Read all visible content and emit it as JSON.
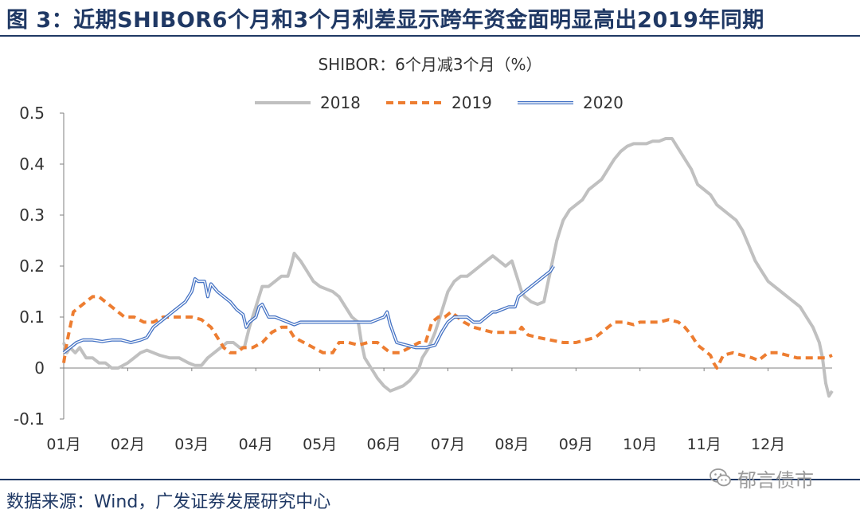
{
  "figure": {
    "title": "图  3：近期SHIBOR6个月和3个月利差显示跨年资金面明显高出2019年同期",
    "source": "数据来源：Wind，广发证券发展研究中心",
    "watermark": "郁言债市",
    "watermark_icon": "wechat-icon"
  },
  "colors": {
    "header_blue": "#1f3864",
    "series_2018": "#c0c0c0",
    "series_2019": "#ed7d31",
    "series_2020": "#4472c4"
  },
  "chart_data": {
    "type": "line",
    "title": "SHIBOR：6个月减3个月（%）",
    "x_unit": "month",
    "xlim": [
      1,
      13
    ],
    "ylim": [
      -0.1,
      0.5
    ],
    "yticks": [
      "-0.1",
      "0",
      "0.1",
      "0.2",
      "0.3",
      "0.4",
      "0.5"
    ],
    "xticks": [
      "01月",
      "02月",
      "03月",
      "04月",
      "05月",
      "06月",
      "07月",
      "08月",
      "09月",
      "10月",
      "11月",
      "12月"
    ],
    "grid": false,
    "legend_position": "top-center",
    "series": [
      {
        "name": "2018",
        "style": "solid",
        "points": [
          [
            1.0,
            0.05
          ],
          [
            1.05,
            0.03
          ],
          [
            1.1,
            0.04
          ],
          [
            1.18,
            0.03
          ],
          [
            1.25,
            0.04
          ],
          [
            1.3,
            0.03
          ],
          [
            1.35,
            0.02
          ],
          [
            1.45,
            0.02
          ],
          [
            1.55,
            0.01
          ],
          [
            1.65,
            0.01
          ],
          [
            1.75,
            0.0
          ],
          [
            1.85,
            0.0
          ],
          [
            2.0,
            0.01
          ],
          [
            2.1,
            0.02
          ],
          [
            2.2,
            0.03
          ],
          [
            2.3,
            0.035
          ],
          [
            2.4,
            0.03
          ],
          [
            2.5,
            0.025
          ],
          [
            2.65,
            0.02
          ],
          [
            2.8,
            0.02
          ],
          [
            2.95,
            0.01
          ],
          [
            3.05,
            0.005
          ],
          [
            3.15,
            0.005
          ],
          [
            3.25,
            0.02
          ],
          [
            3.35,
            0.03
          ],
          [
            3.45,
            0.04
          ],
          [
            3.55,
            0.05
          ],
          [
            3.65,
            0.05
          ],
          [
            3.75,
            0.04
          ],
          [
            3.82,
            0.04
          ],
          [
            3.9,
            0.08
          ],
          [
            3.95,
            0.1
          ],
          [
            4.0,
            0.12
          ],
          [
            4.05,
            0.14
          ],
          [
            4.1,
            0.16
          ],
          [
            4.2,
            0.16
          ],
          [
            4.3,
            0.17
          ],
          [
            4.4,
            0.18
          ],
          [
            4.5,
            0.18
          ],
          [
            4.55,
            0.2
          ],
          [
            4.6,
            0.225
          ],
          [
            4.7,
            0.21
          ],
          [
            4.8,
            0.19
          ],
          [
            4.9,
            0.17
          ],
          [
            5.0,
            0.16
          ],
          [
            5.1,
            0.155
          ],
          [
            5.2,
            0.15
          ],
          [
            5.3,
            0.14
          ],
          [
            5.4,
            0.12
          ],
          [
            5.5,
            0.1
          ],
          [
            5.6,
            0.09
          ],
          [
            5.65,
            0.05
          ],
          [
            5.7,
            0.02
          ],
          [
            5.8,
            0.0
          ],
          [
            5.9,
            -0.02
          ],
          [
            6.0,
            -0.035
          ],
          [
            6.1,
            -0.045
          ],
          [
            6.2,
            -0.04
          ],
          [
            6.3,
            -0.035
          ],
          [
            6.4,
            -0.025
          ],
          [
            6.5,
            -0.01
          ],
          [
            6.55,
            0.0
          ],
          [
            6.6,
            0.02
          ],
          [
            6.7,
            0.04
          ],
          [
            6.8,
            0.07
          ],
          [
            6.9,
            0.11
          ],
          [
            7.0,
            0.15
          ],
          [
            7.1,
            0.17
          ],
          [
            7.2,
            0.18
          ],
          [
            7.3,
            0.18
          ],
          [
            7.4,
            0.19
          ],
          [
            7.5,
            0.2
          ],
          [
            7.6,
            0.21
          ],
          [
            7.7,
            0.22
          ],
          [
            7.8,
            0.21
          ],
          [
            7.9,
            0.2
          ],
          [
            8.0,
            0.21
          ],
          [
            8.05,
            0.19
          ],
          [
            8.1,
            0.17
          ],
          [
            8.15,
            0.15
          ],
          [
            8.2,
            0.14
          ],
          [
            8.3,
            0.13
          ],
          [
            8.4,
            0.125
          ],
          [
            8.5,
            0.13
          ],
          [
            8.55,
            0.16
          ],
          [
            8.6,
            0.19
          ],
          [
            8.65,
            0.22
          ],
          [
            8.7,
            0.25
          ],
          [
            8.75,
            0.27
          ],
          [
            8.8,
            0.29
          ],
          [
            8.9,
            0.31
          ],
          [
            9.0,
            0.32
          ],
          [
            9.1,
            0.33
          ],
          [
            9.2,
            0.35
          ],
          [
            9.3,
            0.36
          ],
          [
            9.4,
            0.37
          ],
          [
            9.5,
            0.39
          ],
          [
            9.6,
            0.41
          ],
          [
            9.7,
            0.425
          ],
          [
            9.8,
            0.435
          ],
          [
            9.9,
            0.44
          ],
          [
            10.0,
            0.44
          ],
          [
            10.1,
            0.44
          ],
          [
            10.2,
            0.445
          ],
          [
            10.3,
            0.445
          ],
          [
            10.4,
            0.45
          ],
          [
            10.5,
            0.45
          ],
          [
            10.6,
            0.43
          ],
          [
            10.7,
            0.41
          ],
          [
            10.8,
            0.39
          ],
          [
            10.9,
            0.36
          ],
          [
            11.0,
            0.35
          ],
          [
            11.1,
            0.34
          ],
          [
            11.2,
            0.32
          ],
          [
            11.3,
            0.31
          ],
          [
            11.4,
            0.3
          ],
          [
            11.5,
            0.29
          ],
          [
            11.6,
            0.27
          ],
          [
            11.7,
            0.24
          ],
          [
            11.8,
            0.21
          ],
          [
            11.9,
            0.19
          ],
          [
            12.0,
            0.17
          ],
          [
            12.1,
            0.16
          ],
          [
            12.2,
            0.15
          ],
          [
            12.3,
            0.14
          ],
          [
            12.4,
            0.13
          ],
          [
            12.5,
            0.12
          ],
          [
            12.6,
            0.1
          ],
          [
            12.7,
            0.08
          ],
          [
            12.8,
            0.05
          ],
          [
            12.85,
            0.02
          ],
          [
            12.9,
            -0.03
          ],
          [
            12.95,
            -0.055
          ],
          [
            13.0,
            -0.045
          ]
        ]
      },
      {
        "name": "2019",
        "style": "dashed",
        "points": [
          [
            1.0,
            0.01
          ],
          [
            1.05,
            0.05
          ],
          [
            1.1,
            0.08
          ],
          [
            1.15,
            0.11
          ],
          [
            1.25,
            0.12
          ],
          [
            1.35,
            0.13
          ],
          [
            1.45,
            0.14
          ],
          [
            1.55,
            0.14
          ],
          [
            1.65,
            0.13
          ],
          [
            1.75,
            0.12
          ],
          [
            1.85,
            0.11
          ],
          [
            1.95,
            0.1
          ],
          [
            2.1,
            0.1
          ],
          [
            2.25,
            0.09
          ],
          [
            2.4,
            0.09
          ],
          [
            2.55,
            0.1
          ],
          [
            2.7,
            0.1
          ],
          [
            2.85,
            0.1
          ],
          [
            3.0,
            0.1
          ],
          [
            3.15,
            0.095
          ],
          [
            3.3,
            0.08
          ],
          [
            3.4,
            0.06
          ],
          [
            3.5,
            0.04
          ],
          [
            3.6,
            0.03
          ],
          [
            3.7,
            0.03
          ],
          [
            3.8,
            0.04
          ],
          [
            3.95,
            0.04
          ],
          [
            4.1,
            0.05
          ],
          [
            4.25,
            0.07
          ],
          [
            4.4,
            0.08
          ],
          [
            4.5,
            0.08
          ],
          [
            4.6,
            0.06
          ],
          [
            4.75,
            0.05
          ],
          [
            4.9,
            0.04
          ],
          [
            5.05,
            0.03
          ],
          [
            5.2,
            0.03
          ],
          [
            5.3,
            0.05
          ],
          [
            5.45,
            0.05
          ],
          [
            5.6,
            0.045
          ],
          [
            5.75,
            0.05
          ],
          [
            5.9,
            0.05
          ],
          [
            6.0,
            0.04
          ],
          [
            6.1,
            0.03
          ],
          [
            6.25,
            0.03
          ],
          [
            6.4,
            0.04
          ],
          [
            6.55,
            0.05
          ],
          [
            6.65,
            0.05
          ],
          [
            6.7,
            0.07
          ],
          [
            6.75,
            0.09
          ],
          [
            6.85,
            0.1
          ],
          [
            6.95,
            0.1
          ],
          [
            7.05,
            0.11
          ],
          [
            7.15,
            0.1
          ],
          [
            7.25,
            0.09
          ],
          [
            7.4,
            0.08
          ],
          [
            7.55,
            0.075
          ],
          [
            7.7,
            0.07
          ],
          [
            7.85,
            0.07
          ],
          [
            8.0,
            0.07
          ],
          [
            8.1,
            0.07
          ],
          [
            8.15,
            0.08
          ],
          [
            8.25,
            0.065
          ],
          [
            8.4,
            0.06
          ],
          [
            8.6,
            0.055
          ],
          [
            8.8,
            0.05
          ],
          [
            9.0,
            0.05
          ],
          [
            9.15,
            0.055
          ],
          [
            9.3,
            0.06
          ],
          [
            9.45,
            0.075
          ],
          [
            9.6,
            0.09
          ],
          [
            9.75,
            0.09
          ],
          [
            9.9,
            0.085
          ],
          [
            10.0,
            0.09
          ],
          [
            10.15,
            0.09
          ],
          [
            10.3,
            0.09
          ],
          [
            10.45,
            0.095
          ],
          [
            10.6,
            0.09
          ],
          [
            10.7,
            0.08
          ],
          [
            10.8,
            0.065
          ],
          [
            10.9,
            0.045
          ],
          [
            11.0,
            0.035
          ],
          [
            11.1,
            0.025
          ],
          [
            11.15,
            0.01
          ],
          [
            11.2,
            0.0
          ],
          [
            11.3,
            0.025
          ],
          [
            11.45,
            0.03
          ],
          [
            11.6,
            0.025
          ],
          [
            11.75,
            0.02
          ],
          [
            11.85,
            0.015
          ],
          [
            12.0,
            0.03
          ],
          [
            12.15,
            0.03
          ],
          [
            12.3,
            0.025
          ],
          [
            12.45,
            0.02
          ],
          [
            12.6,
            0.02
          ],
          [
            12.75,
            0.02
          ],
          [
            12.9,
            0.02
          ],
          [
            13.0,
            0.025
          ]
        ]
      },
      {
        "name": "2020",
        "style": "double",
        "points": [
          [
            1.0,
            0.03
          ],
          [
            1.05,
            0.035
          ],
          [
            1.1,
            0.04
          ],
          [
            1.2,
            0.05
          ],
          [
            1.3,
            0.055
          ],
          [
            1.45,
            0.055
          ],
          [
            1.6,
            0.052
          ],
          [
            1.75,
            0.055
          ],
          [
            1.9,
            0.055
          ],
          [
            2.05,
            0.05
          ],
          [
            2.2,
            0.055
          ],
          [
            2.3,
            0.06
          ],
          [
            2.4,
            0.08
          ],
          [
            2.5,
            0.09
          ],
          [
            2.6,
            0.1
          ],
          [
            2.7,
            0.11
          ],
          [
            2.8,
            0.12
          ],
          [
            2.9,
            0.13
          ],
          [
            3.0,
            0.15
          ],
          [
            3.05,
            0.175
          ],
          [
            3.1,
            0.17
          ],
          [
            3.2,
            0.17
          ],
          [
            3.25,
            0.14
          ],
          [
            3.3,
            0.165
          ],
          [
            3.4,
            0.15
          ],
          [
            3.5,
            0.14
          ],
          [
            3.6,
            0.13
          ],
          [
            3.7,
            0.115
          ],
          [
            3.8,
            0.105
          ],
          [
            3.85,
            0.08
          ],
          [
            3.9,
            0.09
          ],
          [
            4.0,
            0.1
          ],
          [
            4.05,
            0.12
          ],
          [
            4.1,
            0.125
          ],
          [
            4.2,
            0.1
          ],
          [
            4.3,
            0.1
          ],
          [
            4.4,
            0.095
          ],
          [
            4.5,
            0.09
          ],
          [
            4.6,
            0.085
          ],
          [
            4.7,
            0.09
          ],
          [
            4.85,
            0.09
          ],
          [
            5.0,
            0.09
          ],
          [
            5.2,
            0.09
          ],
          [
            5.4,
            0.09
          ],
          [
            5.6,
            0.09
          ],
          [
            5.8,
            0.09
          ],
          [
            5.9,
            0.095
          ],
          [
            6.0,
            0.1
          ],
          [
            6.05,
            0.11
          ],
          [
            6.1,
            0.085
          ],
          [
            6.2,
            0.05
          ],
          [
            6.35,
            0.045
          ],
          [
            6.5,
            0.04
          ],
          [
            6.65,
            0.04
          ],
          [
            6.8,
            0.045
          ],
          [
            6.9,
            0.07
          ],
          [
            7.0,
            0.09
          ],
          [
            7.1,
            0.1
          ],
          [
            7.2,
            0.1
          ],
          [
            7.3,
            0.1
          ],
          [
            7.4,
            0.09
          ],
          [
            7.5,
            0.09
          ],
          [
            7.6,
            0.1
          ],
          [
            7.7,
            0.11
          ],
          [
            7.75,
            0.11
          ],
          [
            7.85,
            0.115
          ],
          [
            7.95,
            0.12
          ],
          [
            8.05,
            0.12
          ],
          [
            8.1,
            0.14
          ],
          [
            8.2,
            0.15
          ],
          [
            8.3,
            0.16
          ],
          [
            8.4,
            0.17
          ],
          [
            8.5,
            0.18
          ],
          [
            8.6,
            0.19
          ],
          [
            8.65,
            0.2
          ]
        ]
      }
    ]
  }
}
